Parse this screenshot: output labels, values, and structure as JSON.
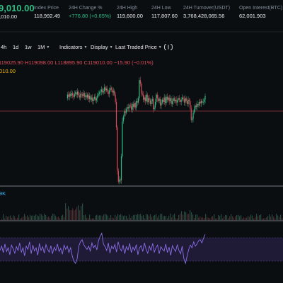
{
  "ticker": {
    "last_price": "9,010.00",
    "last_price_sub": ",010.00",
    "stats": [
      {
        "label": "Index Price",
        "value": "118,992.49",
        "up": false
      },
      {
        "label": "24H Change %",
        "value": "+776.80 (+0.65%)",
        "up": true
      },
      {
        "label": "24H High",
        "value": "119,600.00",
        "up": false
      },
      {
        "label": "24H Low",
        "value": "117,807.60",
        "up": false
      },
      {
        "label": "24H Turnover(USDT)",
        "value": "3,768,428,065.56",
        "up": false
      },
      {
        "label": "Open Interest(BTC)",
        "value": "62,001.903",
        "up": false
      }
    ]
  },
  "toolbar": {
    "intervals": [
      "4h",
      "1d",
      "1w",
      "1M"
    ],
    "indicators_label": "Indicators",
    "display_label": "Display",
    "price_type_label": "Last Traded Price",
    "more_icon": "brackets-icon"
  },
  "ohlc": {
    "text": "119025.90  H119098.00  L118895.90  C119010.00  −15.90 (−0.01%)"
  },
  "ma_value": "010.00",
  "volume_label": "9K",
  "colors": {
    "up": "#2ebd85",
    "down": "#e04b5a",
    "ma": "#f0b90b",
    "rsi": "#8b6fe8",
    "background": "#0b0e11"
  },
  "chart_data": {
    "type": "candlestick",
    "price_series": [
      119000,
      119050,
      119020,
      119060,
      119030,
      119070,
      119040,
      119020,
      119060,
      119080,
      119050,
      119090,
      119040,
      119010,
      119060,
      119050,
      119030,
      119070,
      119020,
      119040,
      119010,
      119050,
      118990,
      119030,
      118980,
      119010,
      118960,
      118990,
      119020,
      118970,
      119000,
      119040,
      119060,
      119080,
      119090,
      119120,
      119080,
      119100,
      119150,
      119110,
      119130,
      119090,
      119060,
      119110,
      119140,
      119120,
      119080,
      119100,
      119050,
      118950,
      118600,
      118000,
      117850,
      117880,
      117870,
      118200,
      118680,
      118750,
      118820,
      118800,
      118850,
      118880,
      118860,
      118900,
      118890,
      118840,
      118920,
      118880,
      118930,
      118870,
      118960,
      118940,
      119000,
      119250,
      119200,
      119070,
      119050,
      118980,
      119010,
      118960,
      119050,
      118950,
      119000,
      118980,
      118920,
      118960,
      118990,
      118850,
      118870,
      118950,
      119050,
      119000,
      118960,
      118990,
      118900,
      118940,
      118980,
      118950,
      119010,
      118930,
      119020,
      118980,
      119010,
      118960,
      119000,
      118920,
      118960,
      119000,
      118960,
      118980,
      118940,
      118970,
      119000,
      118980,
      118950,
      118980,
      119010,
      118990,
      118940,
      119000,
      118960,
      118920,
      118980,
      118960,
      118860,
      118700,
      118720,
      118800,
      118850,
      118900,
      118880,
      118920,
      118900,
      118950,
      118930,
      118960,
      118940,
      118950,
      118980,
      119030
    ],
    "rsi_series": [
      50,
      58,
      46,
      62,
      48,
      55,
      42,
      60,
      53,
      45,
      57,
      50,
      64,
      47,
      55,
      40,
      58,
      52,
      66,
      44,
      60,
      49,
      55,
      41,
      63,
      50,
      57,
      45,
      61,
      52,
      47,
      59,
      44,
      56,
      50,
      62,
      48,
      54,
      43,
      60,
      52,
      58,
      46,
      55,
      40,
      30,
      26,
      34,
      58,
      66,
      70,
      61,
      56,
      52,
      58,
      49,
      64,
      55,
      60,
      51,
      68,
      76,
      82,
      62,
      57,
      50,
      64,
      45,
      58,
      53,
      61,
      47,
      66,
      54,
      49,
      60,
      44,
      57,
      51,
      63,
      46,
      56,
      50,
      61,
      42,
      55,
      59,
      48,
      64,
      52,
      45,
      58,
      50,
      63,
      47,
      55,
      60,
      44,
      57,
      52,
      49,
      62,
      46,
      56,
      41,
      59,
      53,
      48,
      61,
      50,
      44,
      58,
      35,
      26,
      40,
      52,
      60,
      55,
      66,
      58,
      62,
      68,
      70,
      64,
      73,
      80
    ],
    "rsi_upper": 70,
    "rsi_lower": 30
  }
}
